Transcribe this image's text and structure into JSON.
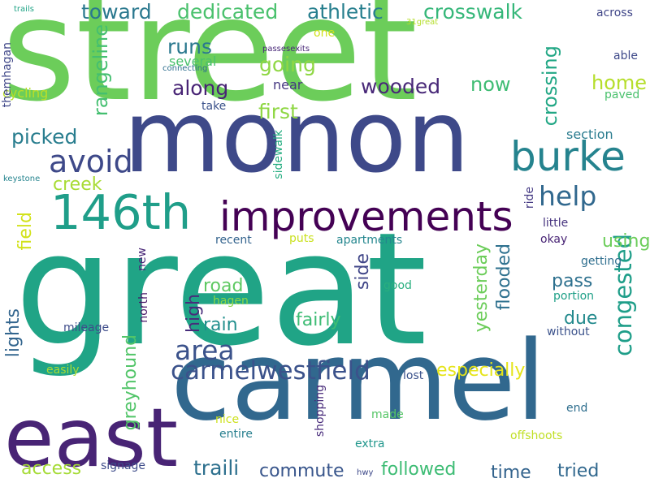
{
  "words": [
    {
      "text": "street",
      "color": "#6ccd5a",
      "rotate": 0
    },
    {
      "text": "great",
      "color": "#20a486",
      "rotate": 0
    },
    {
      "text": "monon",
      "color": "#3e4989",
      "rotate": 0
    },
    {
      "text": "carmel",
      "color": "#31688e",
      "rotate": 0
    },
    {
      "text": "east",
      "color": "#482475",
      "rotate": 0
    },
    {
      "text": "improvements",
      "color": "#440154",
      "rotate": 0
    },
    {
      "text": "146th",
      "color": "#1f9e89",
      "rotate": 0
    },
    {
      "text": "burke",
      "color": "#25838e",
      "rotate": 0
    },
    {
      "text": "carmelwestfield",
      "color": "#3b528b",
      "rotate": 0
    },
    {
      "text": "congested",
      "color": "#1f9e89",
      "rotate": 270
    },
    {
      "text": "avoid",
      "color": "#3e4989",
      "rotate": 0
    },
    {
      "text": "help",
      "color": "#31688e",
      "rotate": 0
    },
    {
      "text": "area",
      "color": "#3b528b",
      "rotate": 0
    },
    {
      "text": "wooded",
      "color": "#482878",
      "rotate": 0
    },
    {
      "text": "traili",
      "color": "#2d708e",
      "rotate": 0
    },
    {
      "text": "athletic",
      "color": "#277f8e",
      "rotate": 0
    },
    {
      "text": "crosswalk",
      "color": "#35b779",
      "rotate": 0
    },
    {
      "text": "dedicated",
      "color": "#4ac16d",
      "rotate": 0
    },
    {
      "text": "toward",
      "color": "#2a788e",
      "rotate": 0
    },
    {
      "text": "going",
      "color": "#8fd744",
      "rotate": 0
    },
    {
      "text": "along",
      "color": "#482475",
      "rotate": 0
    },
    {
      "text": "first",
      "color": "#8fd744",
      "rotate": 0
    },
    {
      "text": "runs",
      "color": "#2a788e",
      "rotate": 0
    },
    {
      "text": "picked",
      "color": "#287d8e",
      "rotate": 0
    },
    {
      "text": "rangeline",
      "color": "#44bf70",
      "rotate": 270
    },
    {
      "text": "crossing",
      "color": "#22a785",
      "rotate": 270
    },
    {
      "text": "now",
      "color": "#3fbc73",
      "rotate": 0
    },
    {
      "text": "home",
      "color": "#b5de2b",
      "rotate": 0
    },
    {
      "text": "creek",
      "color": "#a8db34",
      "rotate": 0
    },
    {
      "text": "road",
      "color": "#5ec962",
      "rotate": 0
    },
    {
      "text": "fairly",
      "color": "#3dbc74",
      "rotate": 0
    },
    {
      "text": "rain",
      "color": "#218f8d",
      "rotate": 0
    },
    {
      "text": "high",
      "color": "#472d7b",
      "rotate": 270
    },
    {
      "text": "side",
      "color": "#404688",
      "rotate": 270
    },
    {
      "text": "yesterday",
      "color": "#6ccd5a",
      "rotate": 270
    },
    {
      "text": "flooded",
      "color": "#2d708e",
      "rotate": 270
    },
    {
      "text": "pass",
      "color": "#2d708e",
      "rotate": 0
    },
    {
      "text": "due",
      "color": "#238a8d",
      "rotate": 0
    },
    {
      "text": "especially",
      "color": "#e5e419",
      "rotate": 0
    },
    {
      "text": "greyhound",
      "color": "#52c569",
      "rotate": 270
    },
    {
      "text": "lights",
      "color": "#32658e",
      "rotate": 270
    },
    {
      "text": "field",
      "color": "#d2e21b",
      "rotate": 270
    },
    {
      "text": "using",
      "color": "#6ccd5a",
      "rotate": 0
    },
    {
      "text": "access",
      "color": "#a5db36",
      "rotate": 0
    },
    {
      "text": "commute",
      "color": "#39568c",
      "rotate": 0
    },
    {
      "text": "followed",
      "color": "#3dbc74",
      "rotate": 0
    },
    {
      "text": "time",
      "color": "#33638d",
      "rotate": 0
    },
    {
      "text": "tried",
      "color": "#31688e",
      "rotate": 0
    },
    {
      "text": "across",
      "color": "#404688",
      "rotate": 0
    },
    {
      "text": "able",
      "color": "#3e4989",
      "rotate": 0
    },
    {
      "text": "paved",
      "color": "#4ac16d",
      "rotate": 0
    },
    {
      "text": "section",
      "color": "#297b8e",
      "rotate": 0
    },
    {
      "text": "several",
      "color": "#4ac16d",
      "rotate": 0
    },
    {
      "text": "near",
      "color": "#453781",
      "rotate": 0
    },
    {
      "text": "take",
      "color": "#3b528b",
      "rotate": 0
    },
    {
      "text": "one",
      "color": "#d0e11c",
      "rotate": 0
    },
    {
      "text": "cycling",
      "color": "#b8de29",
      "rotate": 0
    },
    {
      "text": "themhagan",
      "color": "#3f4788",
      "rotate": 270
    },
    {
      "text": "sidewalk",
      "color": "#26ad81",
      "rotate": 270
    },
    {
      "text": "ride",
      "color": "#443983",
      "rotate": 270
    },
    {
      "text": "little",
      "color": "#46337f",
      "rotate": 0
    },
    {
      "text": "okay",
      "color": "#482475",
      "rotate": 0
    },
    {
      "text": "getting",
      "color": "#2e6e8e",
      "rotate": 0
    },
    {
      "text": "portion",
      "color": "#1fa088",
      "rotate": 0
    },
    {
      "text": "without",
      "color": "#3b528b",
      "rotate": 0
    },
    {
      "text": "good",
      "color": "#29af7f",
      "rotate": 0
    },
    {
      "text": "hagen",
      "color": "#8bd646",
      "rotate": 0
    },
    {
      "text": "mileage",
      "color": "#3e4c8a",
      "rotate": 0
    },
    {
      "text": "north",
      "color": "#481467",
      "rotate": 270
    },
    {
      "text": "new",
      "color": "#482677",
      "rotate": 270
    },
    {
      "text": "recent",
      "color": "#33638d",
      "rotate": 0
    },
    {
      "text": "puts",
      "color": "#cae11f",
      "rotate": 0
    },
    {
      "text": "apartments",
      "color": "#24868e",
      "rotate": 0
    },
    {
      "text": "easily",
      "color": "#a8db34",
      "rotate": 0
    },
    {
      "text": "lost",
      "color": "#3b528b",
      "rotate": 0
    },
    {
      "text": "nice",
      "color": "#cde11d",
      "rotate": 0
    },
    {
      "text": "entire",
      "color": "#277f8e",
      "rotate": 0
    },
    {
      "text": "made",
      "color": "#56c667",
      "rotate": 0
    },
    {
      "text": "end",
      "color": "#2e6e8e",
      "rotate": 0
    },
    {
      "text": "offshoots",
      "color": "#c0df25",
      "rotate": 0
    },
    {
      "text": "shopping",
      "color": "#472a7a",
      "rotate": 270
    },
    {
      "text": "extra",
      "color": "#1f968b",
      "rotate": 0
    },
    {
      "text": "signage",
      "color": "#3e4c8a",
      "rotate": 0
    },
    {
      "text": "hwy",
      "color": "#3e4989",
      "rotate": 0
    },
    {
      "text": "keystone",
      "color": "#25848e",
      "rotate": 0
    },
    {
      "text": "connecting",
      "color": "#2e6e8e",
      "rotate": 0
    },
    {
      "text": "passesexits",
      "color": "#482878",
      "rotate": 0
    },
    {
      "text": "trails",
      "color": "#20a486",
      "rotate": 0
    },
    {
      "text": "31great",
      "color": "#b5de2b",
      "rotate": 0
    }
  ]
}
